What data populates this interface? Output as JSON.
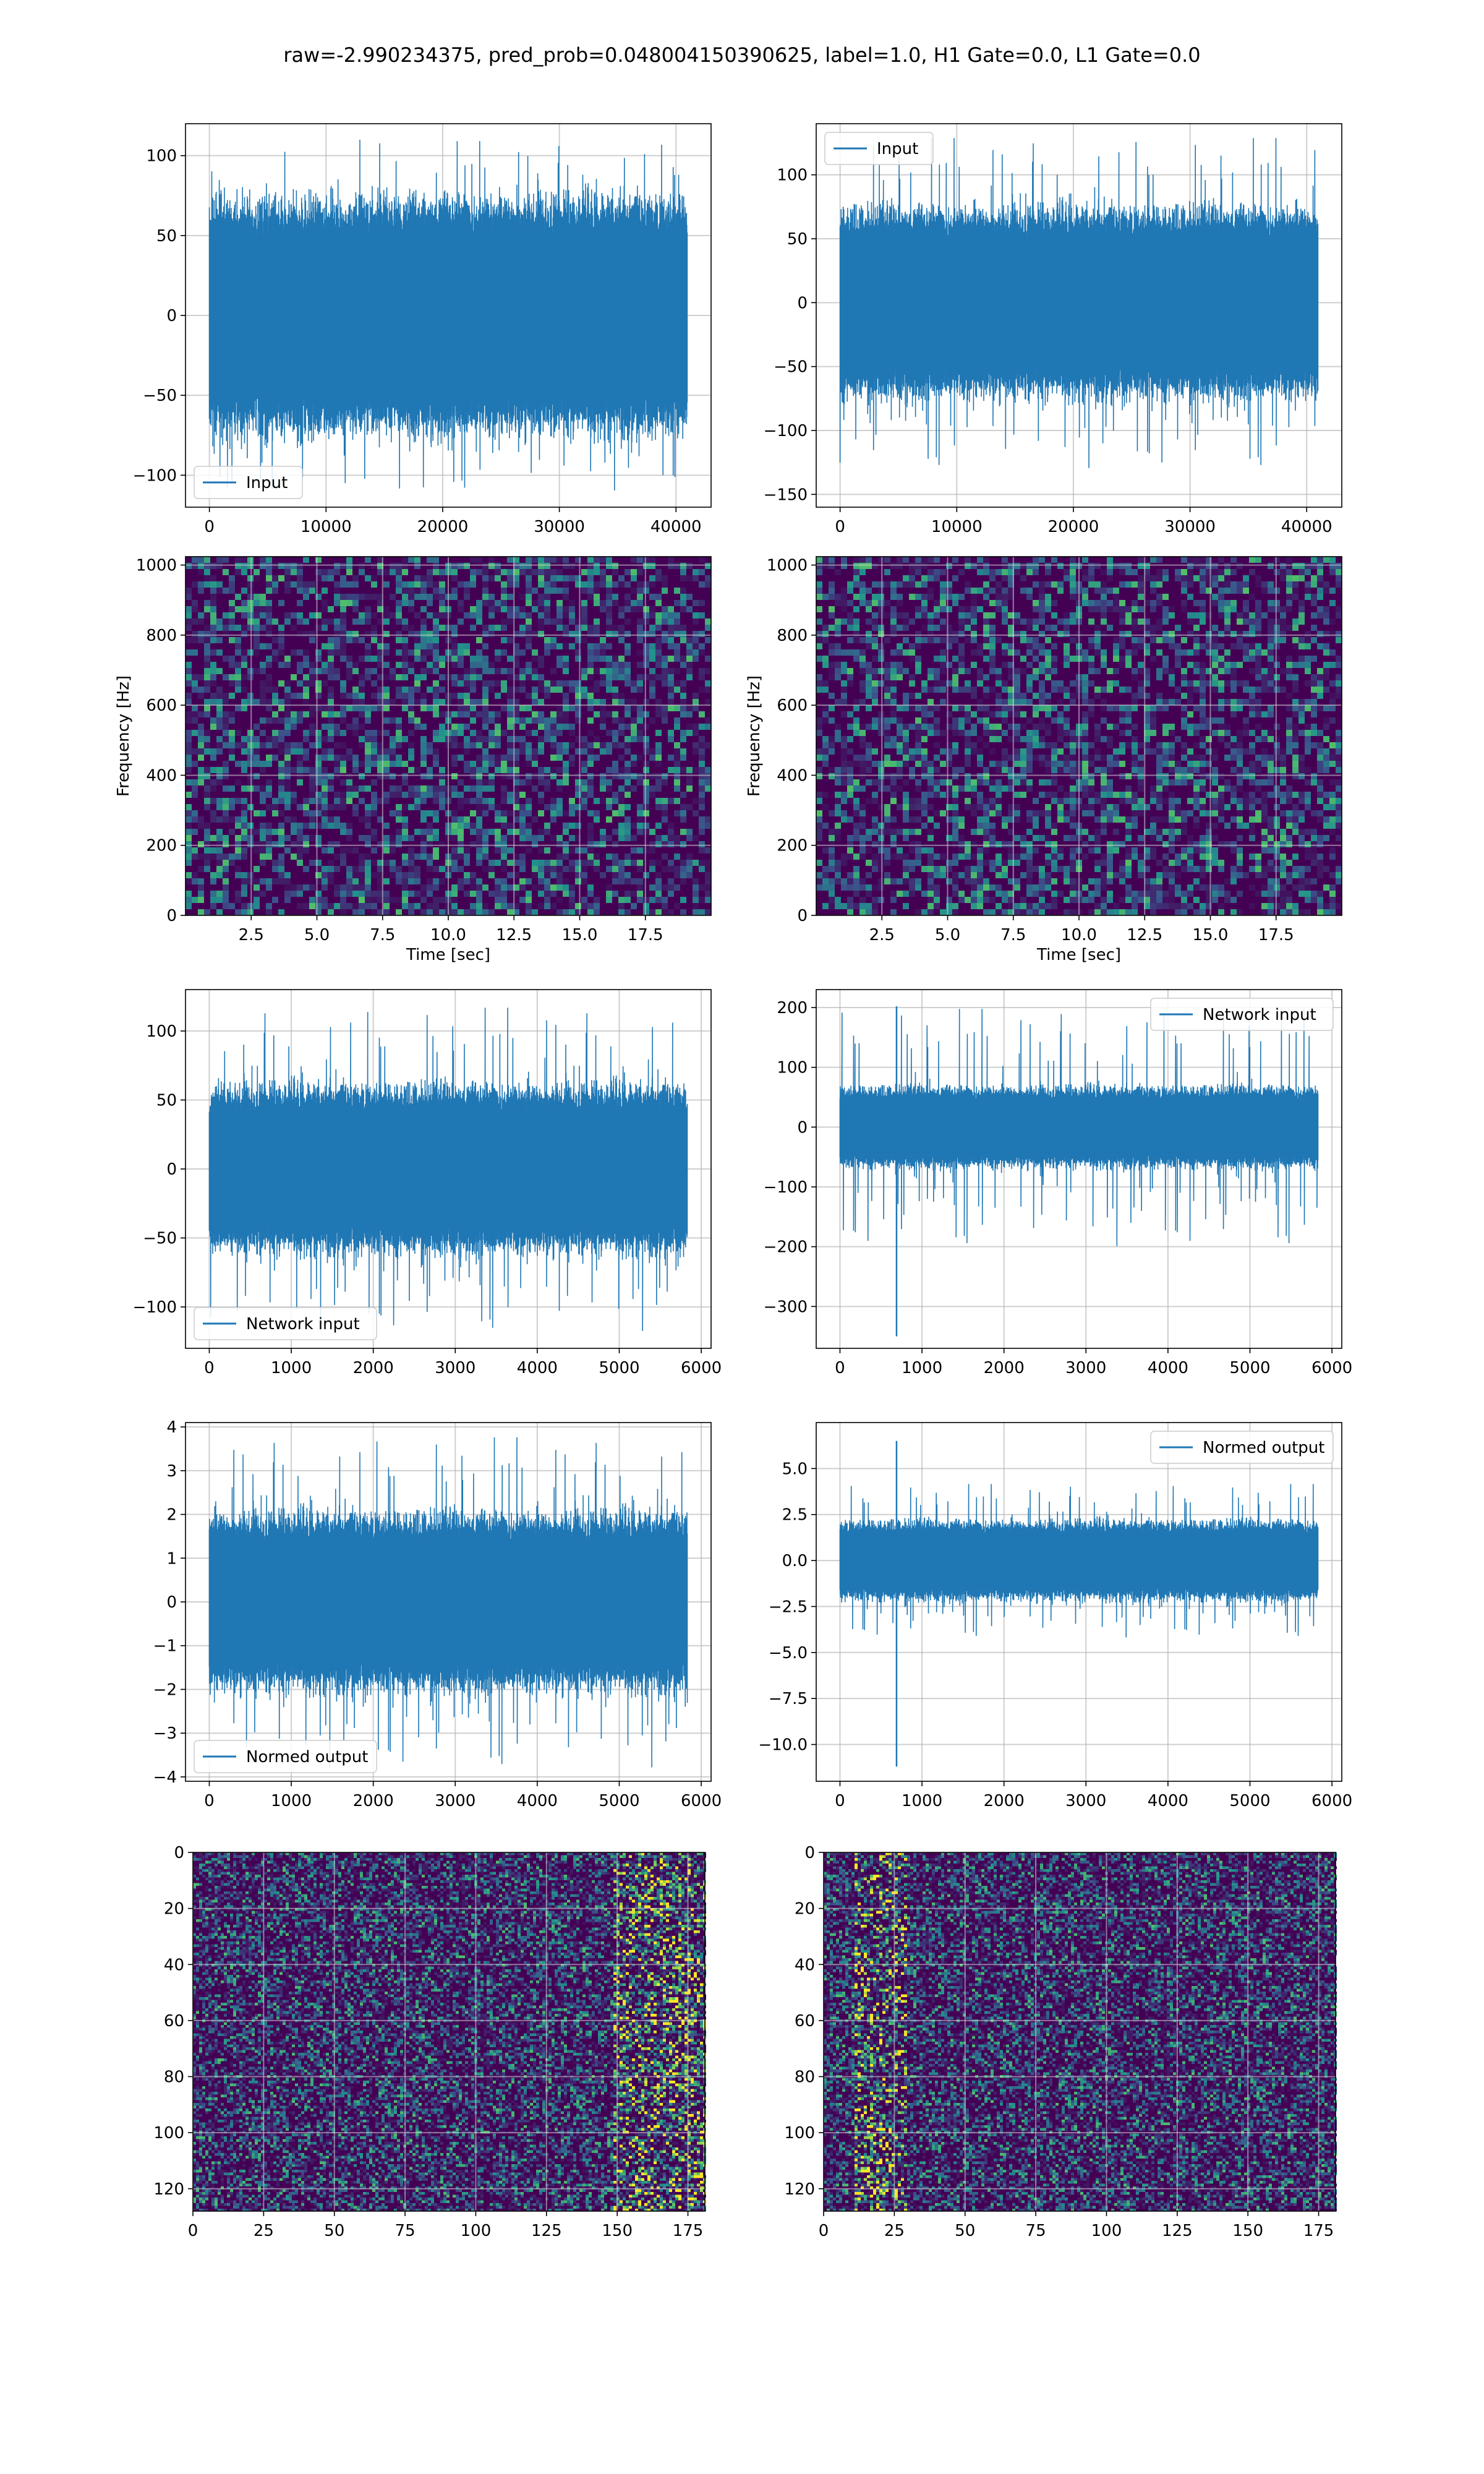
{
  "title": "raw=-2.990234375, pred_prob=0.048004150390625, label=1.0, H1 Gate=0.0, L1 Gate=0.0",
  "colors": {
    "line": "#1f77b4",
    "grid": "#b0b0b0",
    "bg_dark": "#440154"
  },
  "chart_data": [
    {
      "type": "line",
      "series": [
        {
          "name": "Input"
        }
      ],
      "x": [
        0,
        40960
      ],
      "xlim": [
        -2048,
        43008
      ],
      "ylim": [
        -120,
        120
      ],
      "xticks": [
        0,
        10000,
        20000,
        30000,
        40000
      ],
      "yticks": [
        -100,
        -50,
        0,
        50,
        100
      ],
      "legend": "lower-left",
      "grid": true,
      "envelope": 55,
      "spike": 110
    },
    {
      "type": "line",
      "series": [
        {
          "name": "Input"
        }
      ],
      "x": [
        0,
        40960
      ],
      "xlim": [
        -2048,
        43008
      ],
      "ylim": [
        -160,
        140
      ],
      "xticks": [
        0,
        10000,
        20000,
        30000,
        40000
      ],
      "yticks": [
        -150,
        -100,
        -50,
        0,
        50,
        100
      ],
      "legend": "upper-left",
      "grid": true,
      "envelope": 55,
      "spike": 130
    },
    {
      "type": "heatmap",
      "xlabel": "Time [sec]",
      "ylabel": "Frequency [Hz]",
      "xlim": [
        0,
        20
      ],
      "ylim": [
        0,
        1024
      ],
      "xticks": [
        2.5,
        5.0,
        7.5,
        10.0,
        12.5,
        15.0,
        17.5
      ],
      "yticks": [
        0,
        200,
        400,
        600,
        800,
        1000
      ],
      "grid": true
    },
    {
      "type": "heatmap",
      "xlabel": "Time [sec]",
      "ylabel": "Frequency [Hz]",
      "xlim": [
        0,
        20
      ],
      "ylim": [
        0,
        1024
      ],
      "xticks": [
        2.5,
        5.0,
        7.5,
        10.0,
        12.5,
        15.0,
        17.5
      ],
      "yticks": [
        0,
        200,
        400,
        600,
        800,
        1000
      ],
      "grid": true
    },
    {
      "type": "line",
      "series": [
        {
          "name": "Network input"
        }
      ],
      "x": [
        0,
        5830
      ],
      "xlim": [
        -290,
        6120
      ],
      "ylim": [
        -130,
        130
      ],
      "xticks": [
        0,
        1000,
        2000,
        3000,
        4000,
        5000,
        6000
      ],
      "yticks": [
        -100,
        -50,
        0,
        50,
        100
      ],
      "legend": "lower-left",
      "grid": true,
      "envelope": 45,
      "spike": 118
    },
    {
      "type": "line",
      "series": [
        {
          "name": "Network input"
        }
      ],
      "x": [
        0,
        5830
      ],
      "xlim": [
        -290,
        6120
      ],
      "ylim": [
        -370,
        230
      ],
      "xticks": [
        0,
        1000,
        2000,
        3000,
        4000,
        5000,
        6000
      ],
      "yticks": [
        -300,
        -200,
        -100,
        0,
        100,
        200
      ],
      "legend": "upper-right",
      "grid": true,
      "envelope": 50,
      "spike": 200,
      "outlier": {
        "x": 690,
        "low": -350,
        "high": 202
      }
    },
    {
      "type": "line",
      "series": [
        {
          "name": "Normed output"
        }
      ],
      "x": [
        0,
        5830
      ],
      "xlim": [
        -290,
        6120
      ],
      "ylim": [
        -4.1,
        4.1
      ],
      "xticks": [
        0,
        1000,
        2000,
        3000,
        4000,
        5000,
        6000
      ],
      "yticks": [
        -4,
        -3,
        -2,
        -1,
        0,
        1,
        2,
        3,
        4
      ],
      "legend": "lower-left",
      "grid": true,
      "envelope": 1.5,
      "spike": 3.8
    },
    {
      "type": "line",
      "series": [
        {
          "name": "Normed output"
        }
      ],
      "x": [
        0,
        5830
      ],
      "xlim": [
        -290,
        6120
      ],
      "ylim": [
        -12,
        7.5
      ],
      "xticks": [
        0,
        1000,
        2000,
        3000,
        4000,
        5000,
        6000
      ],
      "yticks": [
        -10.0,
        -7.5,
        -5.0,
        -2.5,
        0.0,
        2.5,
        5.0
      ],
      "legend": "upper-right",
      "grid": true,
      "envelope": 1.6,
      "spike": 4.2,
      "outlier": {
        "x": 690,
        "low": -11.2,
        "high": 6.5
      }
    },
    {
      "type": "heatmap",
      "xlim": [
        0,
        181
      ],
      "ylim": [
        128,
        0
      ],
      "xticks": [
        0,
        25,
        50,
        75,
        100,
        125,
        150,
        175
      ],
      "yticks": [
        0,
        20,
        40,
        60,
        80,
        100,
        120
      ],
      "grid": true
    },
    {
      "type": "heatmap",
      "xlim": [
        0,
        181
      ],
      "ylim": [
        128,
        0
      ],
      "xticks": [
        0,
        25,
        50,
        75,
        100,
        125,
        150,
        175
      ],
      "yticks": [
        0,
        20,
        40,
        60,
        80,
        100,
        120
      ],
      "grid": true
    }
  ]
}
